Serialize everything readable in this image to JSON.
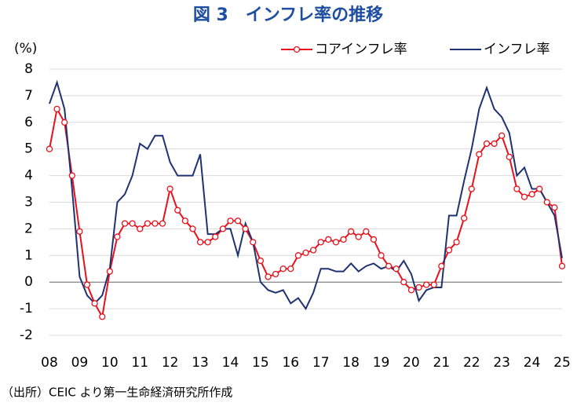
{
  "chart_data": {
    "type": "line",
    "title": "図 3　インフレ率の推移",
    "y_label": "(%)",
    "source": "（出所）CEIC より第一生命経済研究所作成",
    "x": [
      2008,
      2008.25,
      2008.5,
      2008.75,
      2009,
      2009.25,
      2009.5,
      2009.75,
      2010,
      2010.25,
      2010.5,
      2010.75,
      2011,
      2011.25,
      2011.5,
      2011.75,
      2012,
      2012.25,
      2012.5,
      2012.75,
      2013,
      2013.25,
      2013.5,
      2013.75,
      2014,
      2014.25,
      2014.5,
      2014.75,
      2015,
      2015.25,
      2015.5,
      2015.75,
      2016,
      2016.25,
      2016.5,
      2016.75,
      2017,
      2017.25,
      2017.5,
      2017.75,
      2018,
      2018.25,
      2018.5,
      2018.75,
      2019,
      2019.25,
      2019.5,
      2019.75,
      2020,
      2020.25,
      2020.5,
      2020.75,
      2021,
      2021.25,
      2021.5,
      2021.75,
      2022,
      2022.25,
      2022.5,
      2022.75,
      2023,
      2023.25,
      2023.5,
      2023.75,
      2024,
      2024.25,
      2024.5,
      2024.75,
      2025
    ],
    "series": [
      {
        "name": "コアインフレ率",
        "color": "#e8101b",
        "marker": true,
        "values": [
          5.0,
          6.5,
          6.0,
          4.0,
          1.9,
          -0.1,
          -0.8,
          -1.3,
          0.4,
          1.7,
          2.2,
          2.2,
          2.0,
          2.2,
          2.2,
          2.2,
          3.5,
          2.7,
          2.3,
          2.0,
          1.5,
          1.5,
          1.7,
          2.0,
          2.3,
          2.3,
          2.0,
          1.5,
          0.8,
          0.2,
          0.3,
          0.5,
          0.5,
          1.0,
          1.1,
          1.2,
          1.5,
          1.6,
          1.5,
          1.6,
          1.9,
          1.7,
          1.9,
          1.6,
          1.0,
          0.6,
          0.5,
          0.0,
          -0.3,
          -0.2,
          -0.1,
          -0.1,
          0.6,
          1.2,
          1.5,
          2.4,
          3.5,
          4.8,
          5.2,
          5.2,
          5.5,
          4.7,
          3.5,
          3.2,
          3.3,
          3.5,
          3.0,
          2.8,
          0.6
        ]
      },
      {
        "name": "インフレ率",
        "color": "#1f3271",
        "marker": false,
        "values": [
          6.7,
          7.5,
          6.5,
          3.5,
          0.2,
          -0.5,
          -0.8,
          -0.5,
          0.5,
          3.0,
          3.3,
          4.0,
          5.2,
          5.0,
          5.5,
          5.5,
          4.5,
          4.0,
          4.0,
          4.0,
          4.8,
          1.8,
          1.8,
          2.0,
          2.0,
          1.0,
          2.2,
          1.5,
          0.0,
          -0.3,
          -0.4,
          -0.3,
          -0.8,
          -0.6,
          -1.0,
          -0.4,
          0.5,
          0.5,
          0.4,
          0.4,
          0.7,
          0.4,
          0.6,
          0.7,
          0.5,
          0.6,
          0.4,
          0.8,
          0.3,
          -0.7,
          -0.3,
          -0.2,
          -0.2,
          2.5,
          2.5,
          3.8,
          5.0,
          6.5,
          7.3,
          6.5,
          6.2,
          5.6,
          4.0,
          4.3,
          3.5,
          3.5,
          3.0,
          2.5,
          0.9
        ]
      }
    ],
    "xlim": [
      2008,
      2025
    ],
    "xticks": [
      {
        "value": 2008,
        "label": "08"
      },
      {
        "value": 2009,
        "label": "09"
      },
      {
        "value": 2010,
        "label": "10"
      },
      {
        "value": 2011,
        "label": "11"
      },
      {
        "value": 2012,
        "label": "12"
      },
      {
        "value": 2013,
        "label": "13"
      },
      {
        "value": 2014,
        "label": "14"
      },
      {
        "value": 2015,
        "label": "15"
      },
      {
        "value": 2016,
        "label": "16"
      },
      {
        "value": 2017,
        "label": "17"
      },
      {
        "value": 2018,
        "label": "18"
      },
      {
        "value": 2019,
        "label": "19"
      },
      {
        "value": 2020,
        "label": "20"
      },
      {
        "value": 2021,
        "label": "21"
      },
      {
        "value": 2022,
        "label": "22"
      },
      {
        "value": 2023,
        "label": "23"
      },
      {
        "value": 2024,
        "label": "24"
      },
      {
        "value": 2025,
        "label": "25"
      }
    ],
    "ylim": [
      -2,
      8
    ],
    "yticks": [
      -2,
      -1,
      0,
      1,
      2,
      3,
      4,
      5,
      6,
      7,
      8
    ],
    "grid": true,
    "legend": "top-right"
  }
}
